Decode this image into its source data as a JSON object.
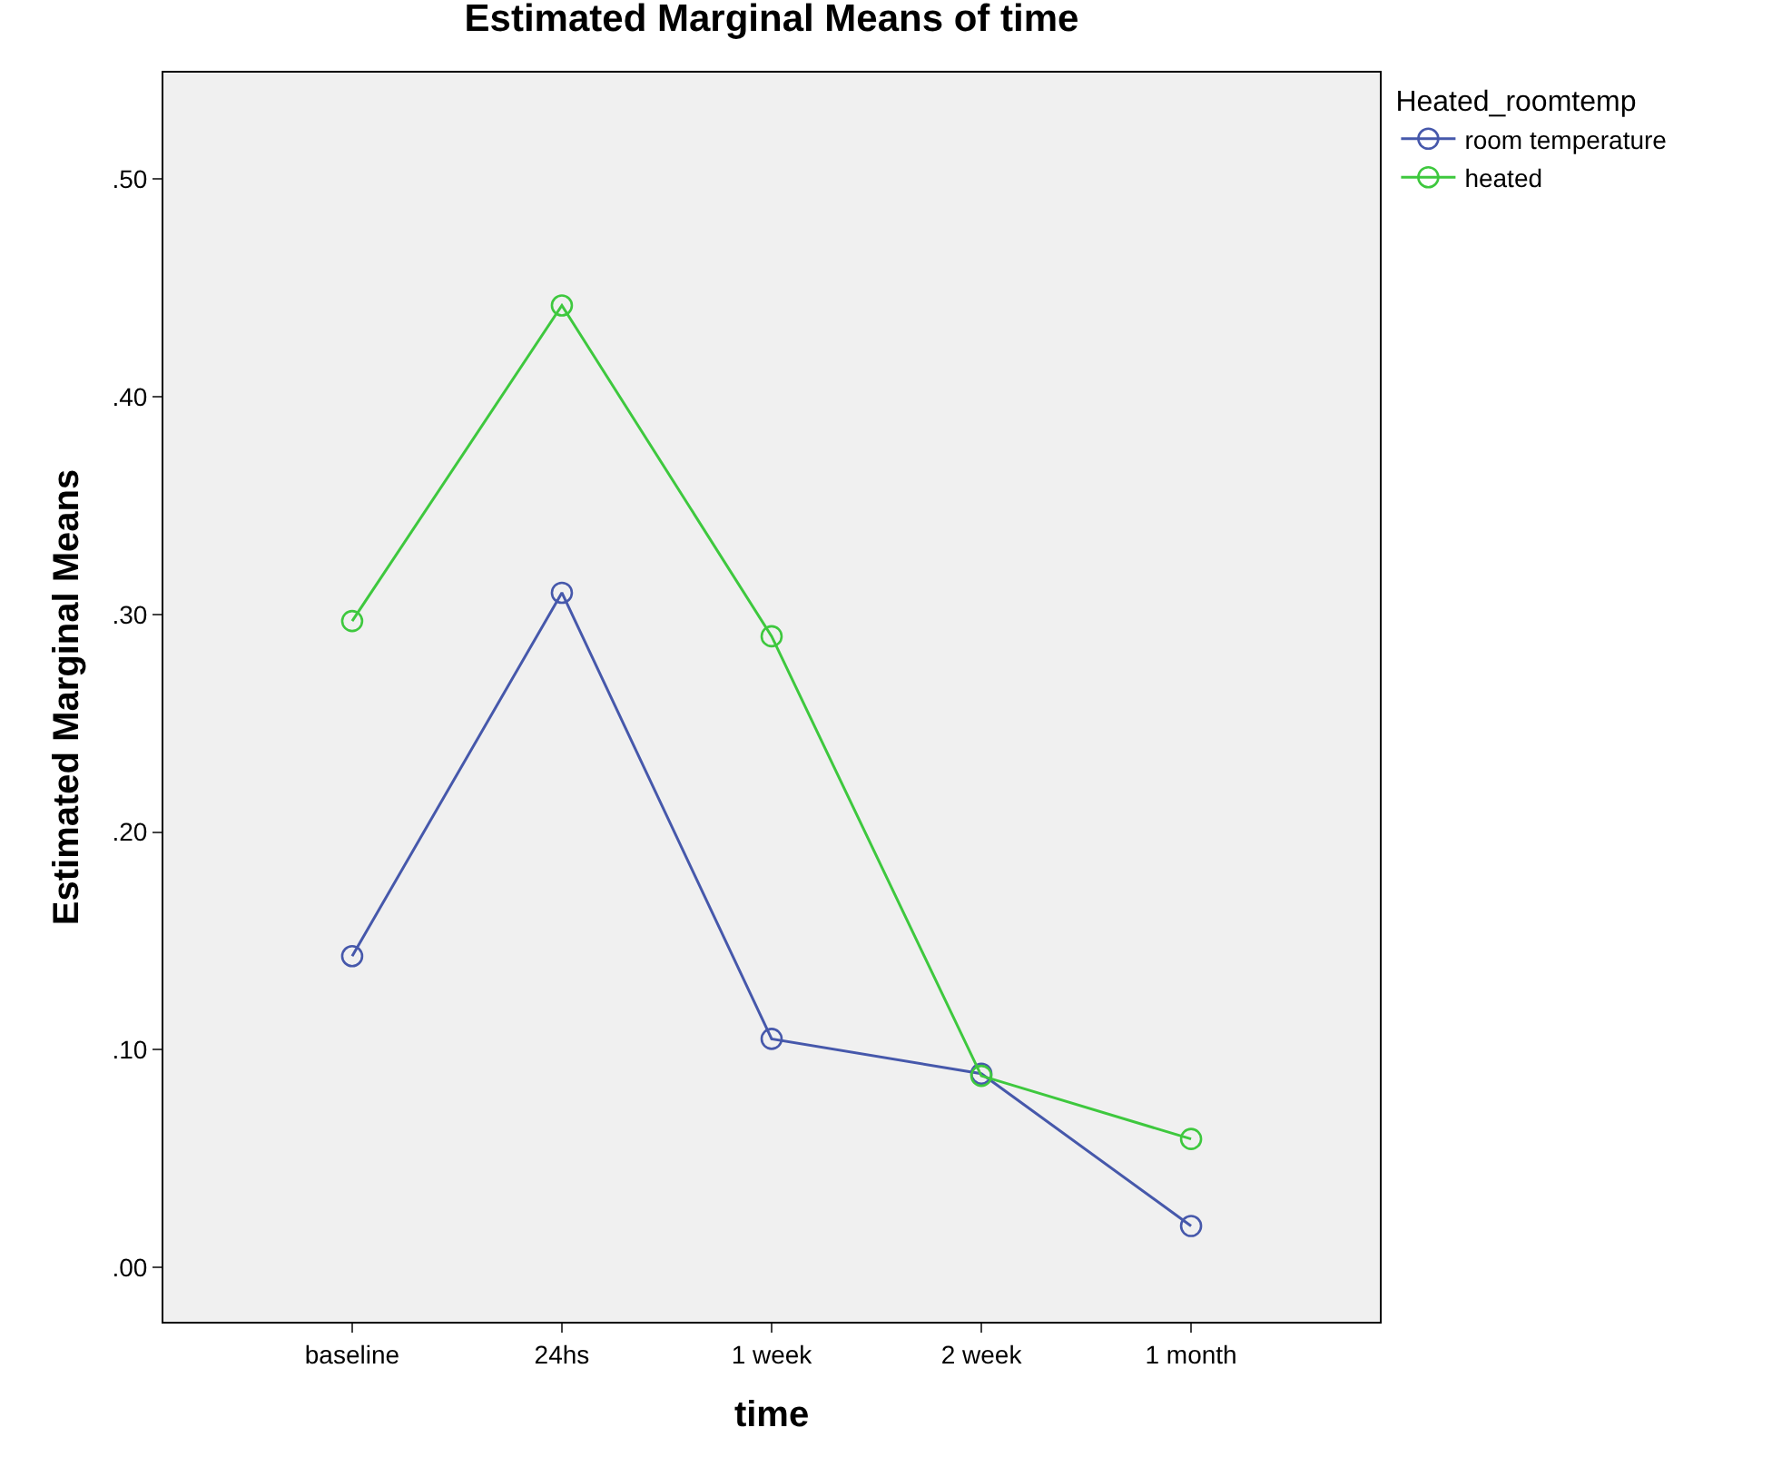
{
  "chart_data": {
    "type": "line",
    "title": "Estimated Marginal Means of time",
    "xlabel": "time",
    "ylabel": "Estimated Marginal Means",
    "legend_title": "Heated_roomtemp",
    "categories": [
      "baseline",
      "24hs",
      "1 week",
      "2 week",
      "1 month"
    ],
    "series": [
      {
        "name": "room temperature",
        "color": "#4658ab",
        "values": [
          0.143,
          0.31,
          0.105,
          0.089,
          0.019
        ]
      },
      {
        "name": "heated",
        "color": "#3ec83e",
        "values": [
          0.297,
          0.442,
          0.29,
          0.088,
          0.059
        ]
      }
    ],
    "ylim": [
      -0.025,
      0.549
    ],
    "yticks": [
      {
        "value": 0,
        "label": ".00"
      },
      {
        "value": 0.1,
        "label": ".10"
      },
      {
        "value": 0.2,
        "label": ".20"
      },
      {
        "value": 0.3,
        "label": ".30"
      },
      {
        "value": 0.4,
        "label": ".40"
      },
      {
        "value": 0.5,
        "label": ".50"
      }
    ],
    "grid": false,
    "legend": "top right",
    "marker": "circle",
    "line_style": "solid"
  }
}
